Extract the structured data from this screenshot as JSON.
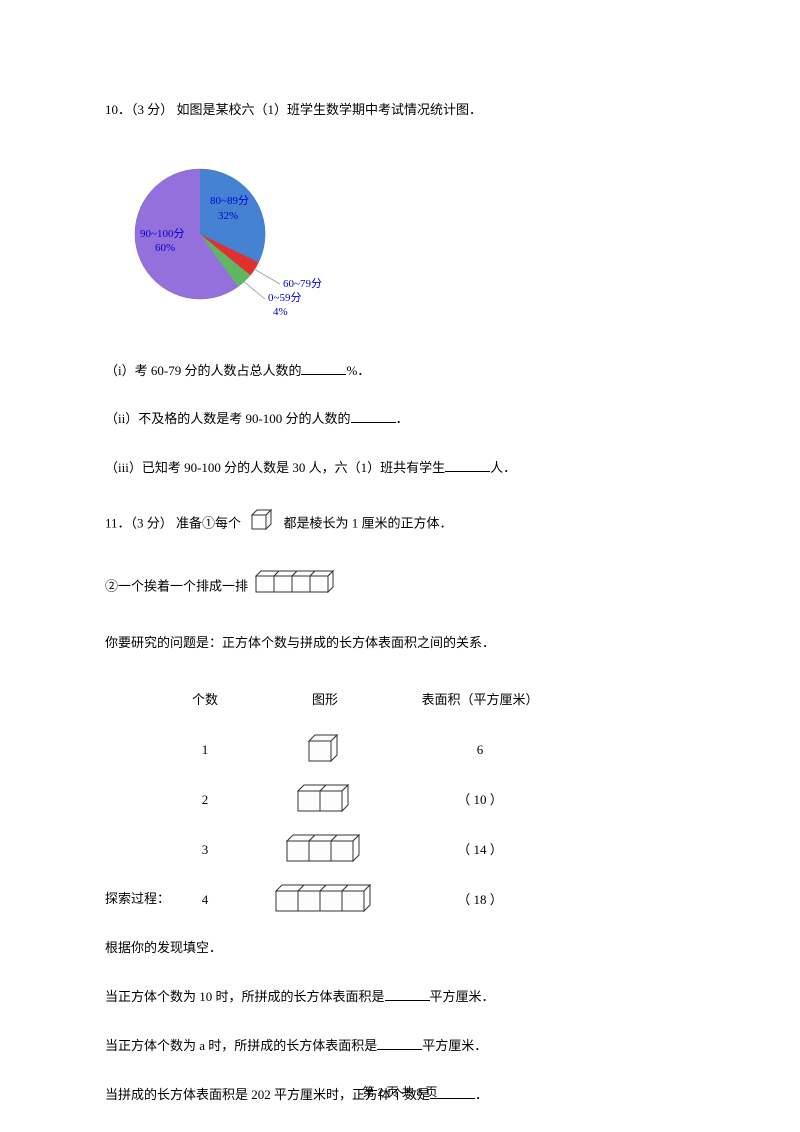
{
  "q10": {
    "title": "10．（3 分）  如图是某校六（1）班学生数学期中考试情况统计图．",
    "pie": {
      "slices": [
        {
          "label": "90~100分",
          "pct": "60%",
          "color": "#9370db",
          "start": 90,
          "end": 306
        },
        {
          "label": "80~89分",
          "pct": "32%",
          "color": "#4682d4",
          "start": 306,
          "end": 61.2
        },
        {
          "label": "60~79分",
          "pct": "",
          "color": "#e03030",
          "start": 61.2,
          "end": 75.6
        },
        {
          "label": "0~59分",
          "pct": "4%",
          "color": "#5fb85f",
          "start": 75.6,
          "end": 90
        }
      ],
      "label_90_100": "90~100分",
      "pct_90_100": "60%",
      "label_80_89": "80~89分",
      "pct_80_89": "32%",
      "label_60_79": "60~79分",
      "label_0_59": "0~59分",
      "pct_0_59": "4%",
      "label_color": "#0000cc"
    },
    "sub_i": "（i）考 60‐79 分的人数占总人数的",
    "sub_i_suffix": "%．",
    "sub_ii": "（ii）不及格的人数是考 90‐100 分的人数的",
    "sub_ii_suffix": "．",
    "sub_iii_a": "（iii）已知考 90‐100 分的人数是 30 人，六（1）班共有学生",
    "sub_iii_b": "人．"
  },
  "q11": {
    "title_a": "11．（3 分）  准备①每个",
    "title_b": "都是棱长为 1 厘米的正方体．",
    "line2_a": "②一个挨着一个排成一排",
    "line3": "你要研究的问题是：正方体个数与拼成的长方体表面积之间的关系．",
    "table": {
      "header_count": "个数",
      "header_shape": "图形",
      "header_area": "表面积（平方厘米）",
      "rows": [
        {
          "count": "1",
          "cubes": 1,
          "area": "6"
        },
        {
          "count": "2",
          "cubes": 2,
          "area": "（ 10 ）"
        },
        {
          "count": "3",
          "cubes": 3,
          "area": "（ 14 ）"
        },
        {
          "count": "4",
          "cubes": 4,
          "area": "（ 18 ）"
        }
      ]
    },
    "explore": "探索过程：",
    "line_fill": "根据你的发现填空．",
    "blank1_a": "当正方体个数为 10 时，所拼成的长方体表面积是",
    "blank1_b": "平方厘米．",
    "blank2_a": "当正方体个数为 a 时，所拼成的长方体表面积是",
    "blank2_b": "平方厘米．",
    "blank3_a": "当拼成的长方体表面积是 202 平方厘米时，正方体个数是",
    "blank3_b": "．"
  },
  "footer": "第 2 页 共 8 页",
  "colors": {
    "cube_fill": "#f5f5f5",
    "cube_stroke": "#333333"
  }
}
